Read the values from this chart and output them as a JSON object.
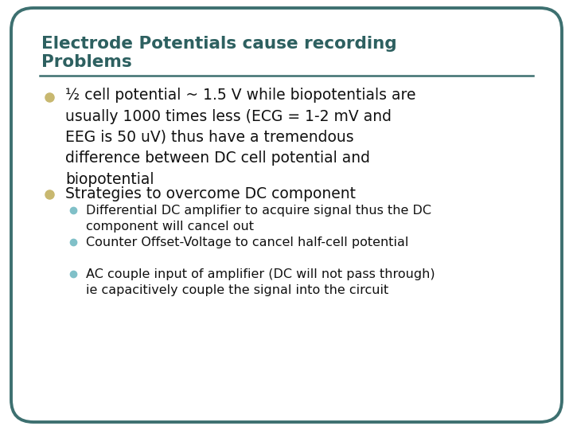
{
  "title_line1": "Electrode Potentials cause recording",
  "title_line2": "Problems",
  "title_color": "#2d6060",
  "title_fontsize": 15.5,
  "background_color": "#ffffff",
  "border_color": "#3d7070",
  "line_color": "#3d7070",
  "bullet1_color": "#c8b870",
  "bullet2_color": "#c8b870",
  "sub_bullet_color": "#80c0c8",
  "text_color": "#111111",
  "body_fontsize": 13.5,
  "sub_fontsize": 11.5,
  "bullet1_text": "½ cell potential ~ 1.5 V while biopotentials are\nusually 1000 times less (ECG = 1-2 mV and\nEEG is 50 uV) thus have a tremendous\ndifference between DC cell potential and\nbiopotential",
  "bullet2_text": "Strategies to overcome DC component",
  "sub_bullets": [
    "Differential DC amplifier to acquire signal thus the DC\ncomponent will cancel out",
    "Counter Offset-Voltage to cancel half-cell potential",
    "AC couple input of amplifier (DC will not pass through)\nie capacitively couple the signal into the circuit"
  ]
}
